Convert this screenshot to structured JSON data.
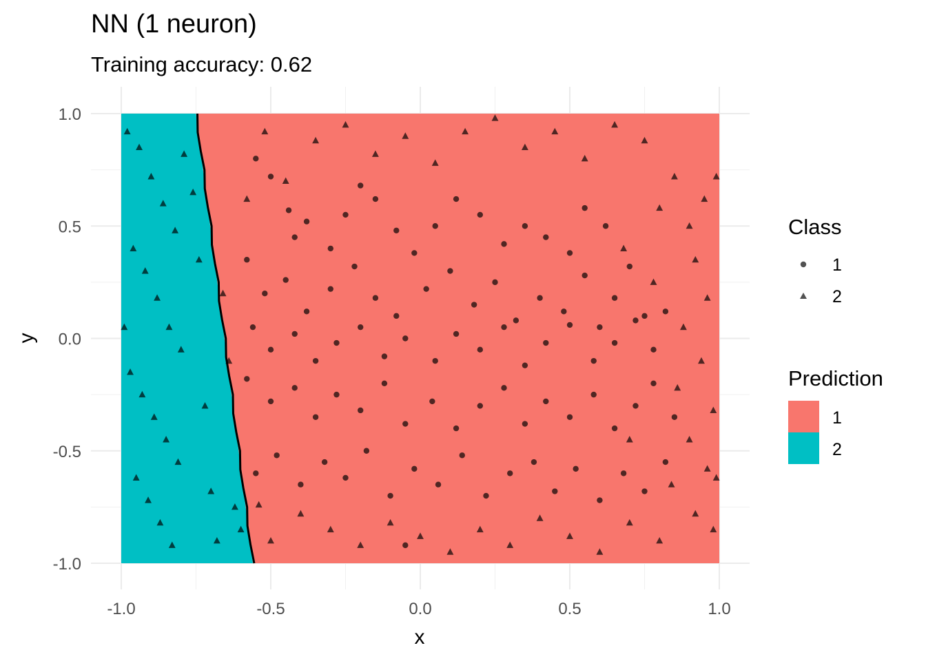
{
  "chart_data": {
    "type": "scatter",
    "title": "NN (1 neuron)",
    "subtitle": "Training accuracy: 0.62",
    "xlabel": "x",
    "ylabel": "y",
    "xlim": [
      -1.0,
      1.0
    ],
    "ylim": [
      -1.0,
      1.0
    ],
    "x_ticks": [
      -1.0,
      -0.5,
      0.0,
      0.5,
      1.0
    ],
    "x_tick_labels": [
      "-1.0",
      "-0.5",
      "0.0",
      "0.5",
      "1.0"
    ],
    "y_ticks": [
      -1.0,
      -0.5,
      0.0,
      0.5,
      1.0
    ],
    "y_tick_labels": [
      "-1.0",
      "-0.5",
      "0.0",
      "0.5",
      "1.0"
    ],
    "grid": true,
    "legend_position": "right",
    "decision_boundary": [
      [
        -0.75,
        1.0
      ],
      [
        -0.56,
        -1.0
      ]
    ],
    "prediction_regions": [
      {
        "label": "1",
        "color": "#F8766D",
        "side": "right"
      },
      {
        "label": "2",
        "color": "#00BFC4",
        "side": "left"
      }
    ],
    "legends": [
      {
        "title": "Class",
        "items": [
          {
            "label": "1",
            "shape": "circle"
          },
          {
            "label": "2",
            "shape": "triangle"
          }
        ]
      },
      {
        "title": "Prediction",
        "items": [
          {
            "label": "1",
            "color": "#F8766D"
          },
          {
            "label": "2",
            "color": "#00BFC4"
          }
        ]
      }
    ],
    "series": [
      {
        "name": "1",
        "shape": "circle",
        "points": [
          [
            -0.55,
            0.8
          ],
          [
            -0.5,
            0.72
          ],
          [
            -0.44,
            0.57
          ],
          [
            -0.42,
            0.45
          ],
          [
            -0.38,
            0.52
          ],
          [
            -0.3,
            0.4
          ],
          [
            -0.25,
            0.55
          ],
          [
            -0.2,
            0.68
          ],
          [
            -0.15,
            0.62
          ],
          [
            -0.08,
            0.48
          ],
          [
            -0.02,
            0.38
          ],
          [
            0.05,
            0.5
          ],
          [
            0.12,
            0.62
          ],
          [
            0.2,
            0.55
          ],
          [
            0.28,
            0.42
          ],
          [
            0.35,
            0.5
          ],
          [
            0.42,
            0.45
          ],
          [
            0.5,
            0.38
          ],
          [
            0.55,
            0.58
          ],
          [
            0.62,
            0.5
          ],
          [
            -0.58,
            0.35
          ],
          [
            -0.52,
            0.2
          ],
          [
            -0.45,
            0.26
          ],
          [
            -0.38,
            0.12
          ],
          [
            -0.3,
            0.22
          ],
          [
            -0.22,
            0.32
          ],
          [
            -0.15,
            0.18
          ],
          [
            -0.08,
            0.1
          ],
          [
            0.02,
            0.22
          ],
          [
            0.1,
            0.3
          ],
          [
            0.18,
            0.15
          ],
          [
            0.25,
            0.25
          ],
          [
            0.32,
            0.08
          ],
          [
            0.4,
            0.18
          ],
          [
            0.48,
            0.12
          ],
          [
            0.55,
            0.28
          ],
          [
            0.6,
            0.05
          ],
          [
            0.65,
            0.18
          ],
          [
            0.7,
            0.32
          ],
          [
            0.75,
            0.1
          ],
          [
            -0.56,
            0.05
          ],
          [
            -0.5,
            -0.05
          ],
          [
            -0.42,
            0.02
          ],
          [
            -0.35,
            -0.1
          ],
          [
            -0.28,
            -0.02
          ],
          [
            -0.2,
            0.05
          ],
          [
            -0.12,
            -0.08
          ],
          [
            -0.05,
            0.0
          ],
          [
            0.05,
            -0.1
          ],
          [
            0.12,
            0.02
          ],
          [
            0.2,
            -0.05
          ],
          [
            0.28,
            0.05
          ],
          [
            0.35,
            -0.12
          ],
          [
            0.42,
            -0.02
          ],
          [
            0.5,
            0.06
          ],
          [
            0.58,
            -0.1
          ],
          [
            0.65,
            -0.02
          ],
          [
            0.72,
            0.08
          ],
          [
            0.78,
            -0.05
          ],
          [
            0.82,
            0.12
          ],
          [
            -0.58,
            -0.18
          ],
          [
            -0.5,
            -0.28
          ],
          [
            -0.42,
            -0.22
          ],
          [
            -0.35,
            -0.35
          ],
          [
            -0.28,
            -0.25
          ],
          [
            -0.2,
            -0.32
          ],
          [
            -0.12,
            -0.2
          ],
          [
            -0.05,
            -0.38
          ],
          [
            0.04,
            -0.28
          ],
          [
            0.12,
            -0.4
          ],
          [
            0.2,
            -0.3
          ],
          [
            0.28,
            -0.22
          ],
          [
            0.35,
            -0.38
          ],
          [
            0.42,
            -0.28
          ],
          [
            0.5,
            -0.35
          ],
          [
            0.58,
            -0.25
          ],
          [
            0.65,
            -0.4
          ],
          [
            0.72,
            -0.3
          ],
          [
            0.78,
            -0.2
          ],
          [
            0.85,
            -0.35
          ],
          [
            -0.55,
            -0.6
          ],
          [
            -0.48,
            -0.52
          ],
          [
            -0.4,
            -0.65
          ],
          [
            -0.32,
            -0.55
          ],
          [
            -0.25,
            -0.62
          ],
          [
            -0.18,
            -0.5
          ],
          [
            -0.1,
            -0.7
          ],
          [
            -0.02,
            -0.58
          ],
          [
            0.06,
            -0.65
          ],
          [
            0.14,
            -0.52
          ],
          [
            0.22,
            -0.7
          ],
          [
            0.3,
            -0.6
          ],
          [
            0.38,
            -0.55
          ],
          [
            0.45,
            -0.68
          ],
          [
            0.52,
            -0.58
          ],
          [
            0.6,
            -0.72
          ],
          [
            0.68,
            -0.6
          ],
          [
            0.75,
            -0.68
          ],
          [
            0.82,
            -0.55
          ],
          [
            -0.05,
            -0.92
          ]
        ]
      },
      {
        "name": "2",
        "shape": "triangle",
        "points": [
          [
            -0.98,
            0.92
          ],
          [
            -0.94,
            0.85
          ],
          [
            -0.9,
            0.72
          ],
          [
            -0.86,
            0.6
          ],
          [
            -0.82,
            0.48
          ],
          [
            -0.96,
            0.4
          ],
          [
            -0.92,
            0.3
          ],
          [
            -0.88,
            0.18
          ],
          [
            -0.84,
            0.05
          ],
          [
            -0.8,
            -0.05
          ],
          [
            -0.97,
            -0.15
          ],
          [
            -0.93,
            -0.25
          ],
          [
            -0.89,
            -0.35
          ],
          [
            -0.85,
            -0.45
          ],
          [
            -0.81,
            -0.55
          ],
          [
            -0.95,
            -0.62
          ],
          [
            -0.91,
            -0.72
          ],
          [
            -0.87,
            -0.82
          ],
          [
            -0.83,
            -0.92
          ],
          [
            -0.79,
            0.82
          ],
          [
            -0.99,
            0.05
          ],
          [
            -0.76,
            0.65
          ],
          [
            -0.74,
            0.35
          ],
          [
            -0.72,
            -0.3
          ],
          [
            -0.7,
            -0.68
          ],
          [
            -0.68,
            -0.9
          ],
          [
            -0.66,
            0.2
          ],
          [
            -0.64,
            -0.1
          ],
          [
            -0.62,
            -0.75
          ],
          [
            -0.6,
            -0.85
          ],
          [
            -0.58,
            0.62
          ],
          [
            -0.52,
            0.92
          ],
          [
            -0.45,
            0.7
          ],
          [
            -0.35,
            0.88
          ],
          [
            -0.25,
            0.95
          ],
          [
            -0.15,
            0.82
          ],
          [
            -0.05,
            0.9
          ],
          [
            0.05,
            0.78
          ],
          [
            0.15,
            0.92
          ],
          [
            0.25,
            0.98
          ],
          [
            0.35,
            0.85
          ],
          [
            0.45,
            0.92
          ],
          [
            0.55,
            0.8
          ],
          [
            0.65,
            0.95
          ],
          [
            0.75,
            0.88
          ],
          [
            0.85,
            0.72
          ],
          [
            0.95,
            0.62
          ],
          [
            0.99,
            0.72
          ],
          [
            0.9,
            0.5
          ],
          [
            0.8,
            0.58
          ],
          [
            0.92,
            0.35
          ],
          [
            0.96,
            0.18
          ],
          [
            0.88,
            0.05
          ],
          [
            0.94,
            -0.1
          ],
          [
            0.86,
            -0.22
          ],
          [
            0.98,
            -0.32
          ],
          [
            0.9,
            -0.45
          ],
          [
            0.96,
            -0.58
          ],
          [
            0.84,
            -0.65
          ],
          [
            0.92,
            -0.78
          ],
          [
            0.98,
            -0.85
          ],
          [
            0.8,
            -0.9
          ],
          [
            0.7,
            -0.82
          ],
          [
            0.6,
            -0.95
          ],
          [
            0.5,
            -0.88
          ],
          [
            0.4,
            -0.8
          ],
          [
            0.3,
            -0.92
          ],
          [
            0.2,
            -0.85
          ],
          [
            0.1,
            -0.95
          ],
          [
            0.0,
            -0.88
          ],
          [
            -0.1,
            -0.82
          ],
          [
            -0.2,
            -0.92
          ],
          [
            -0.3,
            -0.85
          ],
          [
            -0.4,
            -0.78
          ],
          [
            -0.5,
            -0.9
          ],
          [
            -0.54,
            -0.74
          ],
          [
            0.7,
            -0.45
          ],
          [
            0.78,
            0.25
          ],
          [
            0.68,
            0.4
          ],
          [
            0.99,
            -0.62
          ]
        ]
      }
    ]
  }
}
